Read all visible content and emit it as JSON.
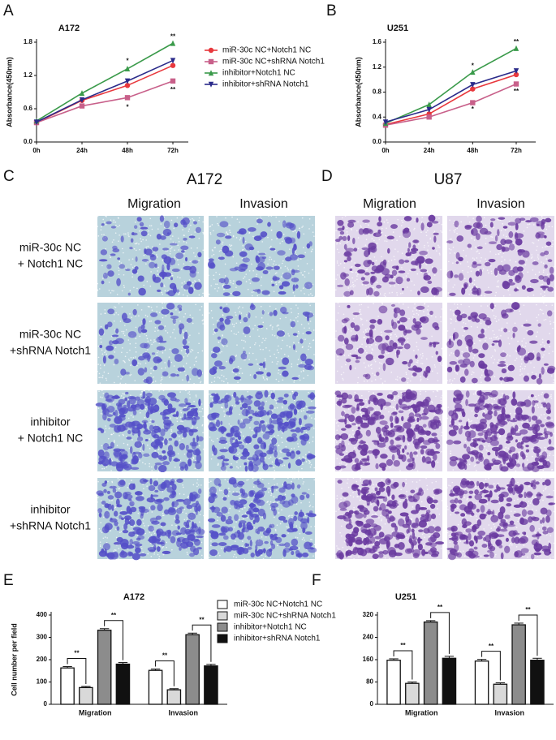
{
  "chart_data": [
    {
      "type": "line",
      "panel": "A",
      "title": "A172",
      "y_label": "Absorbance(450nm)",
      "categories": [
        "0h",
        "24h",
        "48h",
        "72h"
      ],
      "ylim": [
        0,
        1.8
      ],
      "yticks": [
        {
          "value": 0,
          "label": "0.0"
        },
        0.6,
        1.2,
        1.8
      ],
      "legend": "right",
      "series": [
        {
          "name": "miR-30c NC+Notch1 NC",
          "color": "#e8383d",
          "marker": "circle",
          "values": [
            0.35,
            0.75,
            1.02,
            1.38
          ]
        },
        {
          "name": "miR-30c NC+shRNA Notch1",
          "color": "#c8608a",
          "marker": "square",
          "values": [
            0.35,
            0.65,
            0.8,
            1.1
          ]
        },
        {
          "name": "inhibitor+Notch1 NC",
          "color": "#3a9a4a",
          "marker": "triangle-up",
          "values": [
            0.38,
            0.88,
            1.32,
            1.78
          ]
        },
        {
          "name": "inhibitor+shRNA Notch1",
          "color": "#2b2b8a",
          "marker": "triangle-down",
          "values": [
            0.36,
            0.76,
            1.1,
            1.47
          ]
        }
      ],
      "annotations": [
        {
          "text": "*",
          "x": "48h",
          "y": 1.46
        },
        {
          "text": "*",
          "x": "48h",
          "y": 0.62
        },
        {
          "text": "**",
          "x": "72h",
          "y": 1.9
        },
        {
          "text": "**",
          "x": "72h",
          "y": 0.94
        }
      ]
    },
    {
      "type": "line",
      "panel": "B",
      "title": "U251",
      "y_label": "Absorbance(450nm)",
      "categories": [
        "0h",
        "24h",
        "48h",
        "72h"
      ],
      "ylim": [
        0,
        1.6
      ],
      "yticks": [
        {
          "value": 0,
          "label": "0.0"
        },
        0.4,
        0.8,
        1.2,
        1.6
      ],
      "series": [
        {
          "name": "miR-30c NC+Notch1 NC",
          "color": "#e8383d",
          "marker": "circle",
          "values": [
            0.28,
            0.45,
            0.85,
            1.08
          ]
        },
        {
          "name": "miR-30c NC+shRNA Notch1",
          "color": "#c8608a",
          "marker": "square",
          "values": [
            0.27,
            0.4,
            0.63,
            0.93
          ]
        },
        {
          "name": "inhibitor+Notch1 NC",
          "color": "#3a9a4a",
          "marker": "triangle-up",
          "values": [
            0.3,
            0.6,
            1.12,
            1.5
          ]
        },
        {
          "name": "inhibitor+shRNA Notch1",
          "color": "#2b2b8a",
          "marker": "triangle-down",
          "values": [
            0.32,
            0.52,
            0.92,
            1.14
          ]
        }
      ],
      "annotations": [
        {
          "text": "*",
          "x": "48h",
          "y": 1.22
        },
        {
          "text": "*",
          "x": "48h",
          "y": 0.52
        },
        {
          "text": "**",
          "x": "72h",
          "y": 1.6
        },
        {
          "text": "**",
          "x": "72h",
          "y": 0.81
        }
      ]
    },
    {
      "type": "bar",
      "panel": "E",
      "title": "A172",
      "y_label": "Cell number per field",
      "categories": [
        "Migration",
        "Invasion"
      ],
      "ylim": [
        0,
        400
      ],
      "yticks": [
        0,
        100,
        200,
        300,
        400
      ],
      "legend": "right",
      "series": [
        {
          "name": "miR-30c NC+Notch1 NC",
          "color": "#ffffff",
          "values": [
            163,
            152
          ],
          "errors": [
            6,
            6
          ]
        },
        {
          "name": "miR-30c NC+shRNA Notch1",
          "color": "#d9d9d9",
          "values": [
            75,
            65
          ],
          "errors": [
            5,
            5
          ]
        },
        {
          "name": "inhibitor+Notch1 NC",
          "color": "#8c8c8c",
          "values": [
            332,
            312
          ],
          "errors": [
            7,
            7
          ]
        },
        {
          "name": "inhibitor+shRNA Notch1",
          "color": "#111111",
          "values": [
            180,
            172
          ],
          "errors": [
            7,
            7
          ]
        }
      ],
      "annotations": [
        {
          "text": "**",
          "category": 0,
          "between": [
            0,
            1
          ]
        },
        {
          "text": "**",
          "category": 0,
          "between": [
            2,
            3
          ]
        },
        {
          "text": "**",
          "category": 1,
          "between": [
            0,
            1
          ]
        },
        {
          "text": "**",
          "category": 1,
          "between": [
            2,
            3
          ]
        }
      ]
    },
    {
      "type": "bar",
      "panel": "F",
      "title": "U251",
      "categories": [
        "Migration",
        "Invasion"
      ],
      "ylim": [
        0,
        320
      ],
      "yticks": [
        0,
        80,
        160,
        240,
        320
      ],
      "series": [
        {
          "name": "miR-30c NC+Notch1 NC",
          "color": "#ffffff",
          "values": [
            158,
            155
          ],
          "errors": [
            5,
            6
          ]
        },
        {
          "name": "miR-30c NC+shRNA Notch1",
          "color": "#d9d9d9",
          "values": [
            75,
            72
          ],
          "errors": [
            5,
            5
          ]
        },
        {
          "name": "inhibitor+Notch1 NC",
          "color": "#8c8c8c",
          "values": [
            295,
            285
          ],
          "errors": [
            5,
            6
          ]
        },
        {
          "name": "inhibitor+shRNA Notch1",
          "color": "#111111",
          "values": [
            165,
            158
          ],
          "errors": [
            7,
            7
          ]
        }
      ],
      "annotations": [
        {
          "text": "**",
          "category": 0,
          "between": [
            0,
            1
          ]
        },
        {
          "text": "**",
          "category": 0,
          "between": [
            2,
            3
          ]
        },
        {
          "text": "**",
          "category": 1,
          "between": [
            0,
            1
          ]
        },
        {
          "text": "**",
          "category": 1,
          "between": [
            2,
            3
          ]
        }
      ]
    }
  ],
  "panels": {
    "C": {
      "letter": "C",
      "title": "A172",
      "columns": [
        "Migration",
        "Invasion"
      ],
      "rows": [
        [
          "miR-30c NC",
          "+ Notch1 NC"
        ],
        [
          "miR-30c NC",
          "+shRNA Notch1"
        ],
        [
          "inhibitor",
          "+ Notch1 NC"
        ],
        [
          "inhibitor",
          "+shRNA Notch1"
        ]
      ]
    },
    "D": {
      "letter": "D",
      "title": "U87",
      "columns": [
        "Migration",
        "Invasion"
      ]
    }
  }
}
